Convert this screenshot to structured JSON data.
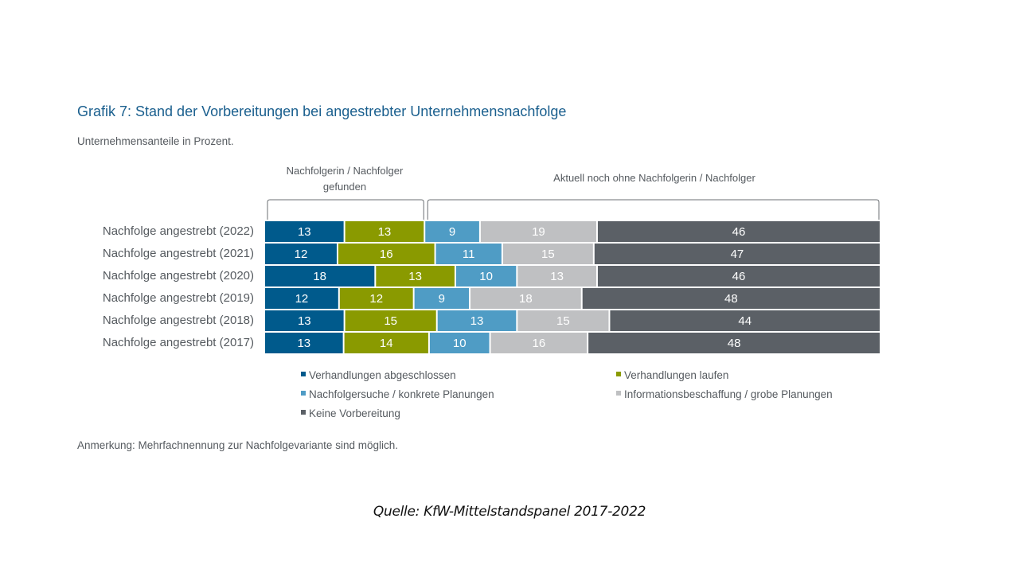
{
  "chart_data": {
    "type": "bar",
    "orientation": "horizontal-stacked",
    "title": "Grafik 7: Stand der Vorbereitungen bei angestrebter Unternehmensnachfolge",
    "subtitle": "Unternehmensanteile in Prozent.",
    "group_brackets": [
      {
        "label": "Nachfolgerin / Nachfolger gefunden",
        "label_lines": [
          "Nachfolgerin / Nachfolger",
          "gefunden"
        ],
        "series": [
          0,
          1
        ]
      },
      {
        "label": "Aktuell noch ohne Nachfolgerin / Nachfolger",
        "label_lines": [
          "Aktuell noch ohne Nachfolgerin / Nachfolger"
        ],
        "series": [
          2,
          3,
          4
        ]
      }
    ],
    "categories": [
      "Nachfolge angestrebt (2022)",
      "Nachfolge angestrebt (2021)",
      "Nachfolge angestrebt (2020)",
      "Nachfolge angestrebt (2019)",
      "Nachfolge angestrebt (2018)",
      "Nachfolge angestrebt (2017)"
    ],
    "series": [
      {
        "name": "Verhandlungen abgeschlossen",
        "color": "#005a8c",
        "values": [
          13,
          12,
          18,
          12,
          13,
          13
        ]
      },
      {
        "name": "Verhandlungen laufen",
        "color": "#8a9a00",
        "values": [
          13,
          16,
          13,
          12,
          15,
          14
        ]
      },
      {
        "name": "Nachfolgersuche / konkrete Planungen",
        "color": "#4f9cc5",
        "values": [
          9,
          11,
          10,
          9,
          13,
          10
        ]
      },
      {
        "name": "Informationsbeschaffung / grobe Planungen",
        "color": "#bfc0c2",
        "values": [
          19,
          15,
          13,
          18,
          15,
          16
        ]
      },
      {
        "name": "Keine Vorbereitung",
        "color": "#5b6066",
        "values": [
          46,
          47,
          46,
          48,
          44,
          48
        ]
      }
    ],
    "xlim": [
      0,
      100
    ],
    "legend_position": "bottom",
    "data_labels": true,
    "grid": false
  },
  "note": "Anmerkung: Mehrfachnennung zur Nachfolgevariante sind möglich.",
  "source": "Quelle: KfW-Mittelstandspanel 2017-2022"
}
